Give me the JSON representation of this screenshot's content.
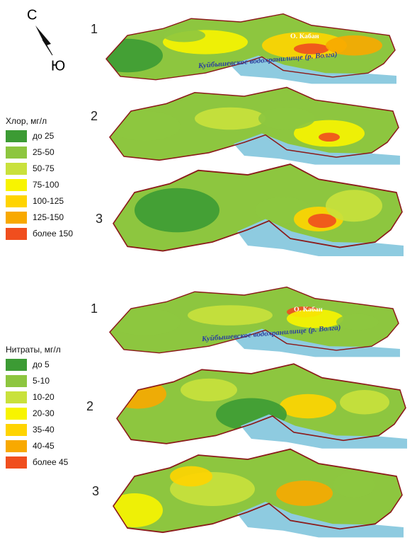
{
  "compass": {
    "north": "С",
    "south": "Ю"
  },
  "chlorine": {
    "panels": [
      "1",
      "2",
      "3"
    ],
    "labels": {
      "lake": "О. Кабан",
      "reservoir": "Куйбышевское водохранилище (р. Волга)"
    },
    "legend": {
      "title": "Хлор, мг/л",
      "items": [
        {
          "label": "до 25",
          "color": "#3c9b34"
        },
        {
          "label": "25-50",
          "color": "#8dc63f"
        },
        {
          "label": "50-75",
          "color": "#c9e13c"
        },
        {
          "label": "75-100",
          "color": "#f8f400"
        },
        {
          "label": "100-125",
          "color": "#ffd400"
        },
        {
          "label": "125-150",
          "color": "#f8a900"
        },
        {
          "label": "более 150",
          "color": "#f04e1e"
        }
      ]
    }
  },
  "nitrates": {
    "panels": [
      "1",
      "2",
      "3"
    ],
    "labels": {
      "lake": "О. Кабан",
      "reservoir": "Куйбышевское водохранилище (р. Волга)"
    },
    "legend": {
      "title": "Нитраты, мг/л",
      "items": [
        {
          "label": "до 5",
          "color": "#3c9b34"
        },
        {
          "label": "5-10",
          "color": "#8dc63f"
        },
        {
          "label": "10-20",
          "color": "#c9e13c"
        },
        {
          "label": "20-30",
          "color": "#f8f400"
        },
        {
          "label": "35-40",
          "color": "#ffd400"
        },
        {
          "label": "40-45",
          "color": "#f8a900"
        },
        {
          "label": "более 45",
          "color": "#f04e1e"
        }
      ]
    }
  }
}
